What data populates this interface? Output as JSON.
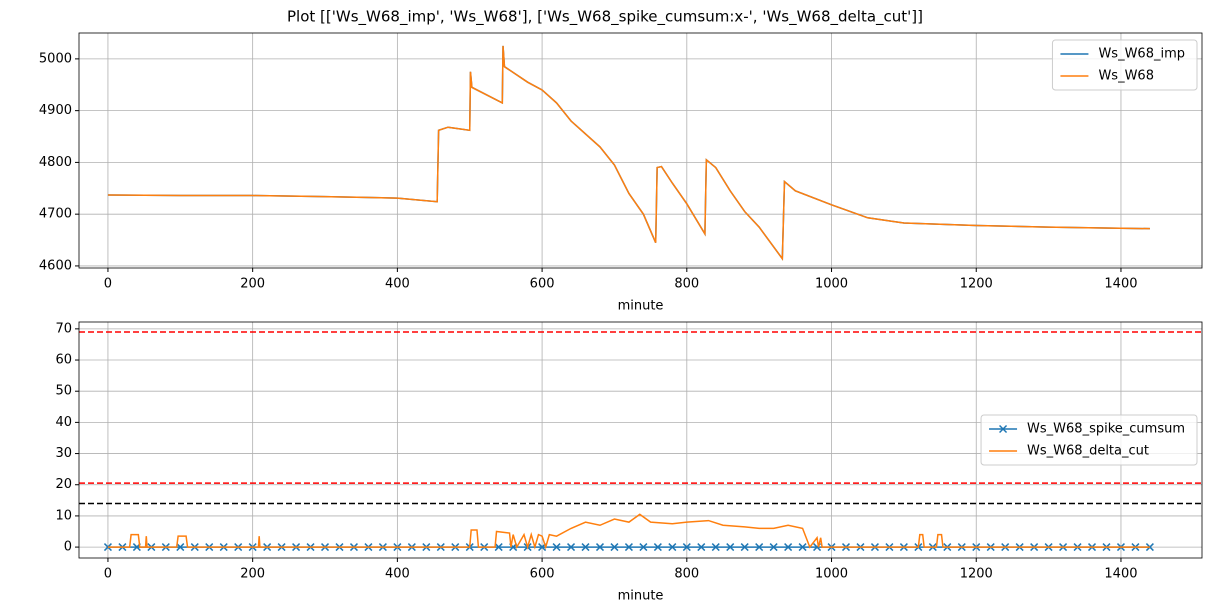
{
  "title": "Plot [['Ws_W68_imp', 'Ws_W68'], ['Ws_W68_spike_cumsum:x-', 'Ws_W68_delta_cut']]",
  "chart_data": [
    {
      "type": "line",
      "xlabel": "minute",
      "xlim": [
        -40,
        1512
      ],
      "ylim": [
        4596,
        5050
      ],
      "xticks": [
        0,
        200,
        400,
        600,
        800,
        1000,
        1200,
        1400
      ],
      "yticks": [
        4600,
        4700,
        4800,
        4900,
        5000
      ],
      "grid": true,
      "legend": "upper right",
      "series": [
        {
          "name": "Ws_W68_imp",
          "color": "#1f77b4",
          "x": [
            0,
            100,
            200,
            300,
            400,
            455,
            457,
            470,
            500,
            501,
            503,
            545,
            546,
            548,
            580,
            600,
            620,
            640,
            680,
            700,
            720,
            740,
            757,
            759,
            765,
            780,
            800,
            825,
            827,
            840,
            860,
            880,
            900,
            932,
            935,
            950,
            1000,
            1050,
            1100,
            1200,
            1300,
            1440
          ],
          "values": [
            4737,
            4736,
            4736,
            4734,
            4731,
            4724,
            4862,
            4868,
            4862,
            4975,
            4945,
            4915,
            5025,
            4985,
            4955,
            4940,
            4915,
            4880,
            4830,
            4795,
            4740,
            4700,
            4645,
            4790,
            4792,
            4760,
            4720,
            4662,
            4805,
            4790,
            4745,
            4705,
            4675,
            4614,
            4763,
            4745,
            4718,
            4693,
            4683,
            4678,
            4675,
            4672
          ]
        },
        {
          "name": "Ws_W68",
          "color": "#ff7f0e",
          "x": [
            0,
            100,
            200,
            300,
            400,
            455,
            457,
            470,
            500,
            501,
            503,
            545,
            546,
            548,
            580,
            600,
            620,
            640,
            680,
            700,
            720,
            740,
            757,
            759,
            765,
            780,
            800,
            825,
            827,
            840,
            860,
            880,
            900,
            932,
            935,
            950,
            1000,
            1050,
            1100,
            1200,
            1300,
            1440
          ],
          "values": [
            4737,
            4736,
            4736,
            4734,
            4731,
            4724,
            4862,
            4868,
            4862,
            4975,
            4945,
            4915,
            5025,
            4985,
            4955,
            4940,
            4915,
            4880,
            4830,
            4795,
            4740,
            4700,
            4645,
            4790,
            4792,
            4760,
            4720,
            4662,
            4805,
            4790,
            4745,
            4705,
            4675,
            4614,
            4763,
            4745,
            4718,
            4693,
            4683,
            4678,
            4675,
            4672
          ]
        }
      ]
    },
    {
      "type": "line",
      "xlabel": "minute",
      "xlim": [
        -40,
        1512
      ],
      "ylim": [
        -3.5,
        72.2
      ],
      "xticks": [
        0,
        200,
        400,
        600,
        800,
        1000,
        1200,
        1400
      ],
      "yticks": [
        0,
        10,
        20,
        30,
        40,
        50,
        60,
        70
      ],
      "grid": true,
      "legend": "center right",
      "hlines": [
        {
          "value": 69,
          "color": "#ff0000"
        },
        {
          "value": 20.5,
          "color": "#ff0000"
        },
        {
          "value": 14,
          "color": "#000000"
        }
      ],
      "series": [
        {
          "name": "Ws_W68_spike_cumsum",
          "color": "#1f77b4",
          "marker": "x",
          "x": [
            0,
            20,
            40,
            60,
            80,
            100,
            120,
            140,
            160,
            180,
            200,
            220,
            240,
            260,
            280,
            300,
            320,
            340,
            360,
            380,
            400,
            420,
            440,
            460,
            480,
            500,
            520,
            540,
            560,
            580,
            600,
            620,
            640,
            660,
            680,
            700,
            720,
            740,
            760,
            780,
            800,
            820,
            840,
            860,
            880,
            900,
            920,
            940,
            960,
            980,
            1000,
            1020,
            1040,
            1060,
            1080,
            1100,
            1120,
            1140,
            1160,
            1180,
            1200,
            1220,
            1240,
            1260,
            1280,
            1300,
            1320,
            1340,
            1360,
            1380,
            1400,
            1420,
            1440
          ],
          "values": [
            0,
            0,
            0,
            0,
            0,
            0,
            0,
            0,
            0,
            0,
            0,
            0,
            0,
            0,
            0,
            0,
            0,
            0,
            0,
            0,
            0,
            0,
            0,
            0,
            0,
            0,
            0,
            0,
            0,
            0,
            0,
            0,
            0,
            0,
            0,
            0,
            0,
            0,
            0,
            0,
            0,
            0,
            0,
            0,
            0,
            0,
            0,
            0,
            0,
            0,
            0,
            0,
            0,
            0,
            0,
            0,
            0,
            0,
            0,
            0,
            0,
            0,
            0,
            0,
            0,
            0,
            0,
            0,
            0,
            0,
            0,
            0,
            0
          ]
        },
        {
          "name": "Ws_W68_delta_cut",
          "color": "#ff7f0e",
          "x": [
            0,
            30,
            32,
            42,
            44,
            52,
            53,
            54,
            95,
            97,
            108,
            110,
            208,
            209,
            210,
            500,
            502,
            510,
            512,
            535,
            537,
            555,
            557,
            560,
            565,
            575,
            580,
            585,
            590,
            595,
            600,
            605,
            610,
            620,
            640,
            660,
            680,
            700,
            720,
            735,
            750,
            780,
            800,
            830,
            850,
            880,
            900,
            920,
            940,
            960,
            970,
            980,
            982,
            985,
            987,
            1120,
            1122,
            1126,
            1128,
            1145,
            1147,
            1152,
            1154,
            1440
          ],
          "values": [
            0,
            0,
            4,
            4,
            0,
            0,
            3.5,
            0,
            0,
            3.5,
            3.5,
            0,
            0,
            3.5,
            0,
            0,
            5.5,
            5.5,
            0,
            0,
            5,
            4.5,
            0,
            4,
            0,
            4,
            0,
            4,
            0,
            4,
            3.5,
            0,
            4,
            3.5,
            6,
            8,
            7,
            9,
            8,
            10.5,
            8,
            7.5,
            8,
            8.5,
            7,
            6.5,
            6,
            6,
            7,
            6,
            0,
            3,
            0,
            3,
            0,
            0,
            4,
            4,
            0,
            0,
            4,
            4,
            0,
            0
          ]
        }
      ]
    }
  ]
}
